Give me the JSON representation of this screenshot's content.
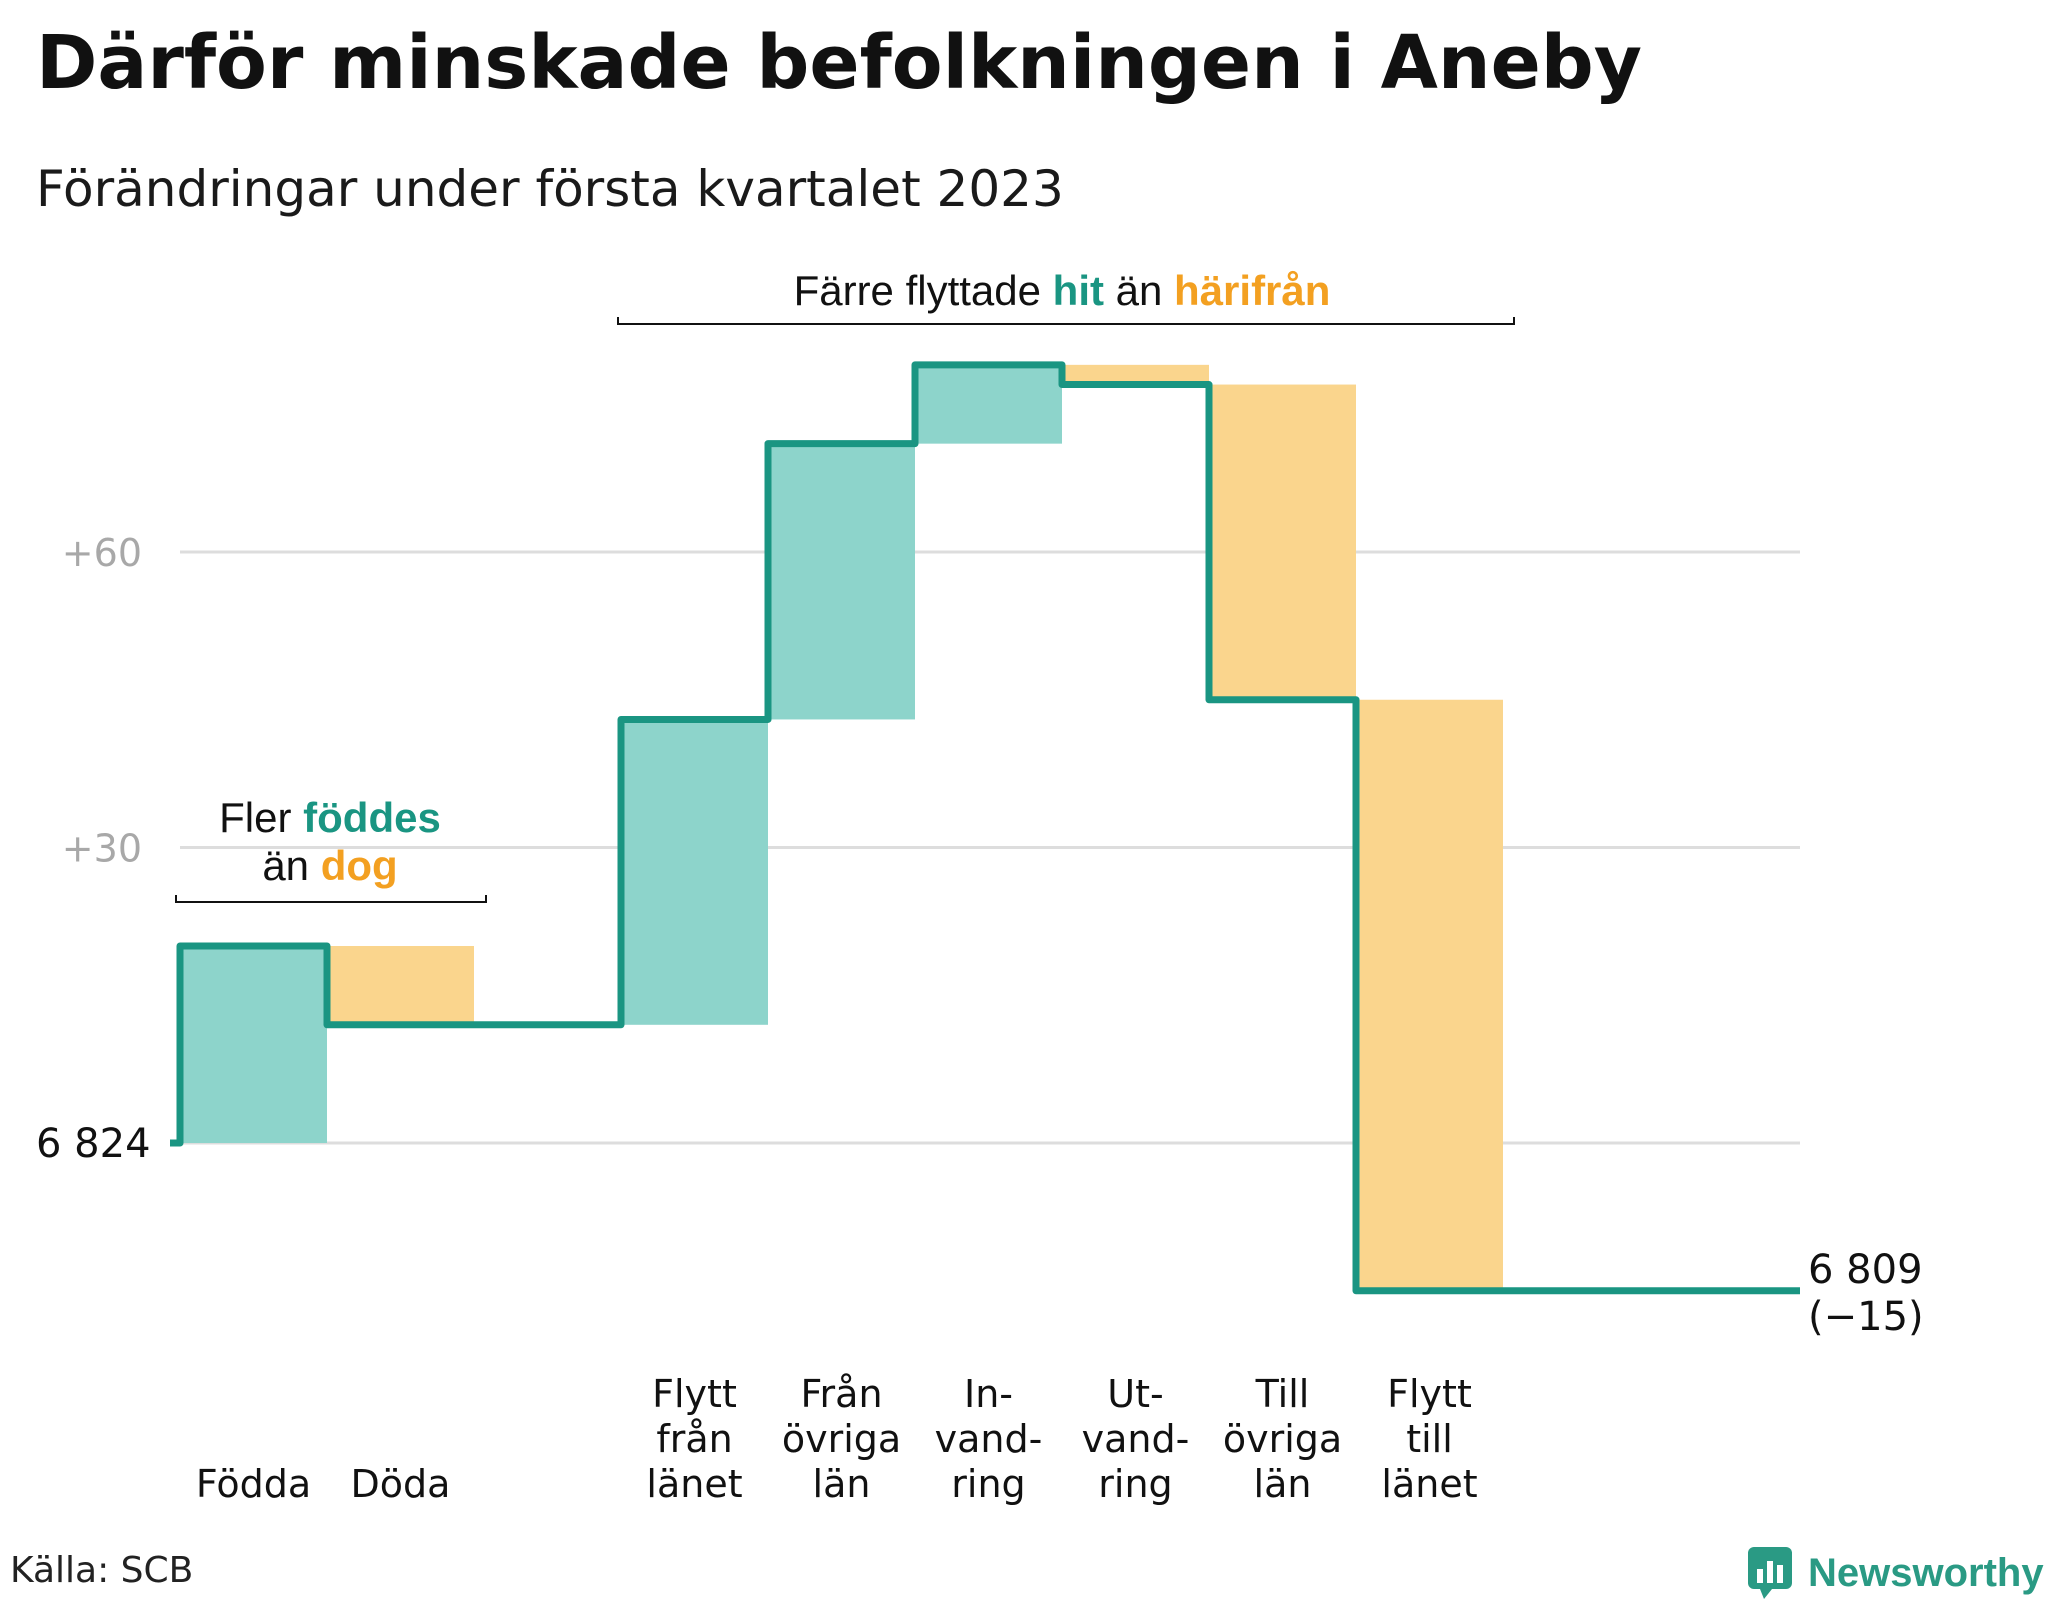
{
  "title": "Därför minskade befolkningen i Aneby",
  "subtitle": "Förändringar under första kvartalet 2023",
  "source": "Källa: SCB",
  "brand": {
    "name": "Newsworthy",
    "icon": "newsworthy-logo-icon"
  },
  "colors": {
    "increase": "#8dd4cb",
    "decrease": "#fad58d",
    "line": "#1a9582",
    "highlight_in": "#1a9582",
    "highlight_out": "#f3a021",
    "grid": "#dddddd"
  },
  "chart_data": {
    "type": "waterfall",
    "start": {
      "label": "6 824",
      "value": 6824
    },
    "end": {
      "label": "6 809",
      "change_label": "(−15)",
      "value": 6809
    },
    "ticks": [
      {
        "value": 30,
        "label": "+30"
      },
      {
        "value": 60,
        "label": "+60"
      }
    ],
    "ylim": [
      -17,
      88
    ],
    "steps": [
      {
        "name": "births",
        "label": [
          "Födda"
        ],
        "delta": 20
      },
      {
        "name": "deaths",
        "label": [
          "Döda"
        ],
        "delta": -8
      },
      {
        "name": "from-county",
        "label": [
          "Flytt",
          "från",
          "länet"
        ],
        "delta": 31
      },
      {
        "name": "from-other-counties",
        "label": [
          "Från",
          "övriga",
          "län"
        ],
        "delta": 28
      },
      {
        "name": "immigration",
        "label": [
          "In-",
          "vand-",
          "ring"
        ],
        "delta": 8
      },
      {
        "name": "emigration",
        "label": [
          "Ut-",
          "vand-",
          "ring"
        ],
        "delta": -2
      },
      {
        "name": "to-other-counties",
        "label": [
          "Till",
          "övriga",
          "län"
        ],
        "delta": -32
      },
      {
        "name": "to-county",
        "label": [
          "Flytt",
          "till",
          "länet"
        ],
        "delta": -60
      }
    ],
    "annotations": [
      {
        "name": "births-deaths-annotation",
        "parts": [
          {
            "line": 0,
            "text": "Fler ",
            "style": "plain"
          },
          {
            "line": 0,
            "text": "föddes",
            "style": "in"
          },
          {
            "line": 1,
            "text": "än ",
            "style": "plain"
          },
          {
            "line": 1,
            "text": "dog",
            "style": "out"
          }
        ]
      },
      {
        "name": "migration-annotation",
        "parts": [
          {
            "line": 0,
            "text": "Färre flyttade ",
            "style": "plain"
          },
          {
            "line": 0,
            "text": "hit",
            "style": "in"
          },
          {
            "line": 0,
            "text": " än ",
            "style": "plain"
          },
          {
            "line": 0,
            "text": "härifrån",
            "style": "out"
          }
        ]
      }
    ]
  }
}
